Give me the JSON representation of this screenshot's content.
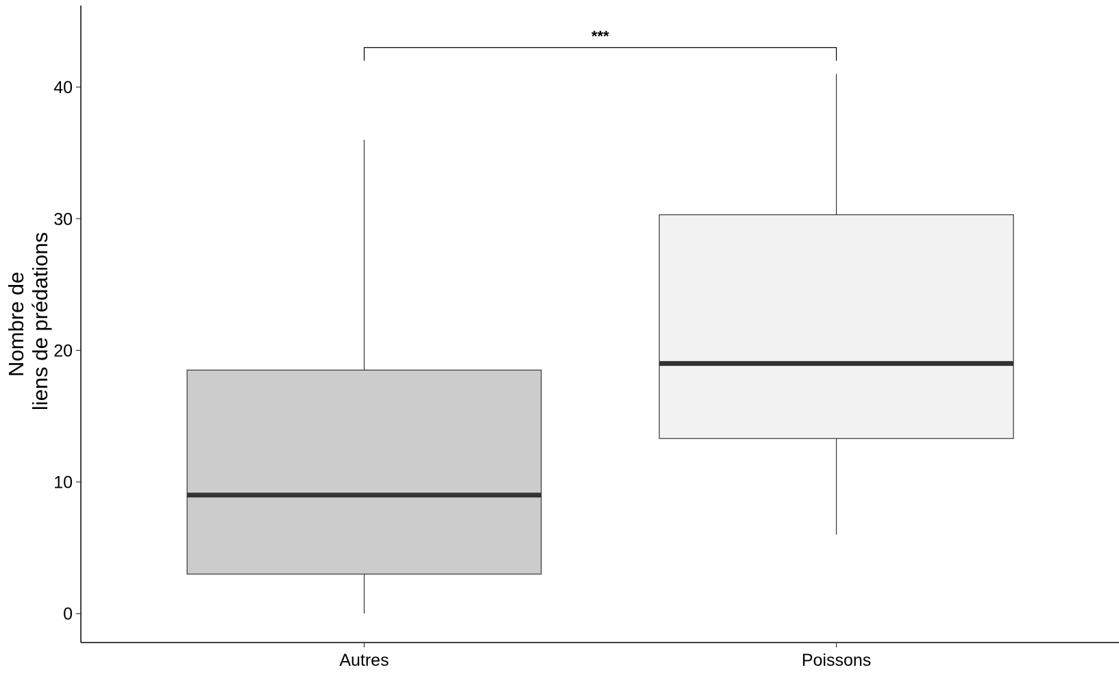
{
  "chart_data": {
    "type": "box",
    "ylabel_lines": [
      "Nombre de",
      "liens de prédations"
    ],
    "xlabel": "",
    "categories": [
      "Autres",
      "Poissons"
    ],
    "boxes": [
      {
        "category": "Autres",
        "min": 0,
        "q1": 3,
        "median": 9,
        "q3": 18.5,
        "max": 36
      },
      {
        "category": "Poissons",
        "min": 6,
        "q1": 13.3,
        "median": 19,
        "q3": 30.3,
        "max": 41
      }
    ],
    "fill_colors": [
      "#cccccc",
      "#f2f2f2"
    ],
    "yticks": [
      0,
      10,
      20,
      30,
      40
    ],
    "ylim": [
      -2.2,
      46.2
    ],
    "grid": false,
    "legend": "none",
    "significance": {
      "label": "***",
      "from": "Autres",
      "to": "Poissons",
      "y": 43,
      "tick_bottom": 42
    }
  }
}
